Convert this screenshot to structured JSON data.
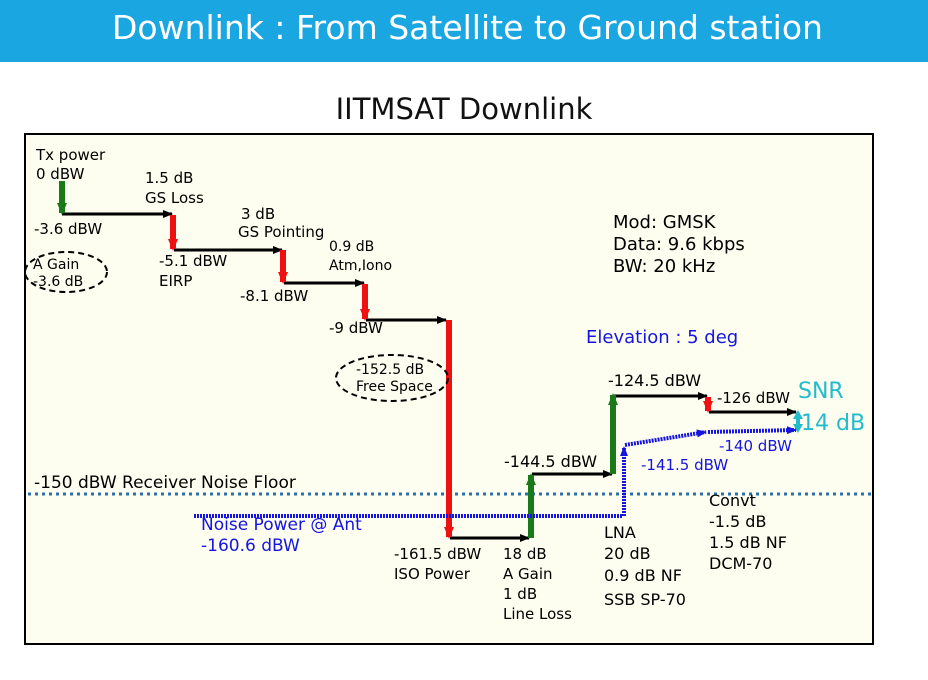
{
  "header": {
    "title": "Downlink : From Satellite to Ground station"
  },
  "diagram_title": "IITMSAT Downlink",
  "colors": {
    "header_bg": "#1aa6e0",
    "panel_bg": "#fdfdf0",
    "gain": "#1a7a1a",
    "loss": "#ee1111",
    "noise": "#1515dd",
    "snr": "#22bbcc",
    "floor": "#2f6faa"
  },
  "labels": {
    "tx_power": "Tx power",
    "tx_dbw": "0 dBW",
    "gs_loss_db": "1.5 dB",
    "gs_loss": "GS Loss",
    "gs_point_db": "3 dB",
    "gs_point": "GS Pointing",
    "atm_db": "0.9 dB",
    "atm": "Atm,Iono",
    "lvl_m36": "-3.6 dBW",
    "a_gain": "A Gain",
    "a_gain_db": "-3.6 dB",
    "lvl_m51": "-5.1 dBW",
    "eirp": "EIRP",
    "lvl_m81": "-8.1 dBW",
    "lvl_m9": "-9 dBW",
    "fs_db": "-152.5 dB",
    "fs": "Free Space",
    "mod": "Mod:  GMSK",
    "data_rate": "Data:  9.6 kbps",
    "bw": "BW:  20 kHz",
    "elevation": "Elevation : 5 deg",
    "lvl_m1245": "-124.5 dBW",
    "lvl_m126": "-126 dBW",
    "snr": "SNR",
    "snr_db": "14 dB",
    "lvl_m140": "-140 dBW",
    "lvl_m1415": "-141.5 dBW",
    "lvl_m1445": "-144.5 dBW",
    "floor": "-150 dBW Receiver Noise Floor",
    "noise_ant": "Noise Power @ Ant",
    "noise_ant_dbw": "-160.6 dBW",
    "lvl_m1615": "-161.5 dBW",
    "iso": "ISO Power",
    "ag18": "18 dB",
    "ag18b": "A Gain",
    "ll_db": "1 dB",
    "ll": "Line Loss",
    "lna": "LNA",
    "lna_db": "20 dB",
    "lna_nf": "0.9 dB NF",
    "lna_model": "SSB SP-70",
    "convt": "Convt",
    "convt_db": "-1.5 dB",
    "convt_nf": "1.5 dB NF",
    "convt_model": "DCM-70"
  }
}
